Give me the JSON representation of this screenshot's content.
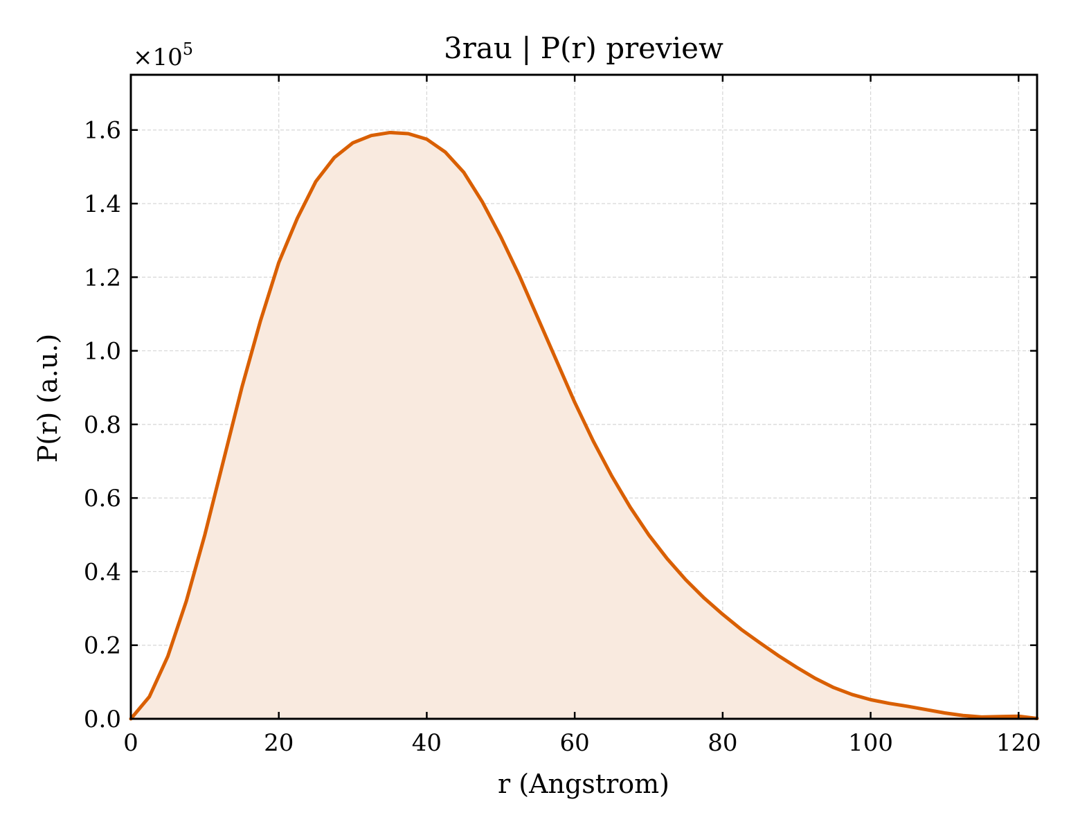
{
  "chart_data": {
    "type": "area",
    "title": "3rau | P(r) preview",
    "xlabel": "r (Angstrom)",
    "ylabel": "P(r) (a.u.)",
    "y_multiplier_label": "×10",
    "y_multiplier_exponent": "5",
    "xlim": [
      0,
      122.5
    ],
    "ylim": [
      0,
      1.75
    ],
    "xticks": [
      0,
      20,
      40,
      60,
      80,
      100,
      120
    ],
    "yticks": [
      0.0,
      0.2,
      0.4,
      0.6,
      0.8,
      1.0,
      1.2,
      1.4,
      1.6
    ],
    "ytick_labels": [
      "0.0",
      "0.2",
      "0.4",
      "0.6",
      "0.8",
      "1.0",
      "1.2",
      "1.4",
      "1.6"
    ],
    "grid": true,
    "line_color": "#d95f02",
    "fill_color": "#f9eadf",
    "series": [
      {
        "x": [
          0,
          2.5,
          5,
          7.5,
          10,
          12.5,
          15,
          17.5,
          20,
          22.5,
          25,
          27.5,
          30,
          32.5,
          35,
          37.5,
          40,
          42.5,
          45,
          47.5,
          50,
          52.5,
          55,
          57.5,
          60,
          62.5,
          65,
          67.5,
          70,
          72.5,
          75,
          77.5,
          80,
          82.5,
          85,
          87.5,
          90,
          92.5,
          95,
          97.5,
          100,
          102.5,
          105,
          107.5,
          110,
          112.5,
          115,
          117.5,
          120,
          122.5
        ],
        "y": [
          0.0,
          0.06,
          0.17,
          0.32,
          0.5,
          0.7,
          0.9,
          1.08,
          1.24,
          1.36,
          1.46,
          1.525,
          1.565,
          1.585,
          1.593,
          1.59,
          1.575,
          1.54,
          1.485,
          1.405,
          1.31,
          1.205,
          1.09,
          0.975,
          0.86,
          0.755,
          0.66,
          0.575,
          0.5,
          0.435,
          0.378,
          0.328,
          0.284,
          0.243,
          0.207,
          0.172,
          0.14,
          0.11,
          0.085,
          0.066,
          0.052,
          0.042,
          0.034,
          0.025,
          0.016,
          0.009,
          0.005,
          0.006,
          0.007,
          0.001
        ]
      }
    ]
  }
}
